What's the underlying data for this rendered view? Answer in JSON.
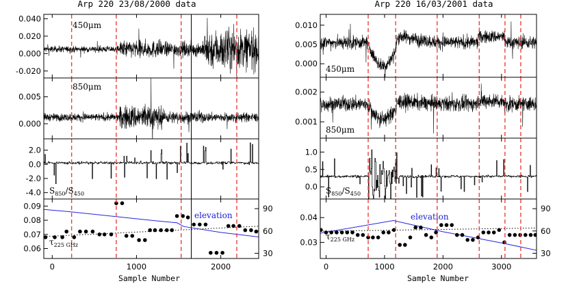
{
  "colors": {
    "dashed_lines": "#e8413f",
    "elevation": "#2323e0",
    "trace": "#000000"
  },
  "chart_data": [
    {
      "type": "line",
      "title": "Arp 220 23/08/2000 data",
      "xlabel": "Sample Number",
      "xlim": [
        -100,
        2450
      ],
      "x_ticks": [
        0,
        1000,
        2000
      ],
      "dashed_markers_x": [
        230,
        760,
        1530,
        2190
      ],
      "solid_marker_x": 1650,
      "panels": [
        {
          "name": "450",
          "label_main": "450",
          "label_unit": "μm",
          "ylim": [
            -0.028,
            0.045
          ],
          "y_ticks": [
            0.04,
            0.02,
            0.0,
            -0.02
          ],
          "y_tick_labels": [
            "0.040",
            "0.020",
            "0.000",
            "-0.020"
          ],
          "baseline": 0.005,
          "noise_segments": [
            [
              -100,
              800,
              0.0025
            ],
            [
              800,
              1300,
              0.007
            ],
            [
              1300,
              1800,
              0.006
            ],
            [
              1800,
              2450,
              0.016
            ]
          ]
        },
        {
          "name": "850",
          "label_main": "850",
          "label_unit": "μm",
          "ylim": [
            -0.0028,
            0.0085
          ],
          "y_ticks": [
            0.005,
            0.0
          ],
          "y_tick_labels": [
            "0.005",
            "0.000"
          ],
          "baseline": 0.0012,
          "noise_segments": [
            [
              -100,
              800,
              0.0005
            ],
            [
              800,
              1300,
              0.0016
            ],
            [
              1300,
              1800,
              0.0008
            ],
            [
              1800,
              2450,
              0.0006
            ]
          ]
        },
        {
          "name": "ratio",
          "label_main": "S",
          "sub1": "850",
          "label_mid": "/S",
          "sub2": "450",
          "ylim": [
            -4.9,
            3.6
          ],
          "y_ticks": [
            2.0,
            0.0,
            -2.0,
            -4.0
          ],
          "y_tick_labels": [
            "2.0",
            "0.0",
            "-2.0",
            "-4.0"
          ],
          "baseline": 0.2
        },
        {
          "name": "tau",
          "label_main": "τ",
          "sub1": "225 GHz",
          "ylim": [
            0.053,
            0.095
          ],
          "y_ticks": [
            0.09,
            0.08,
            0.07,
            0.06
          ],
          "y_tick_labels": [
            "0.09",
            "0.08",
            "0.07",
            "0.06"
          ],
          "right_ylim": [
            23,
            103
          ],
          "right_ticks": [
            90,
            60,
            30
          ],
          "right_tick_labels": [
            "90",
            "60",
            "30"
          ],
          "elevation_label": "elevation",
          "elevation": [
            [
              -100,
              89
            ],
            [
              200,
              86
            ],
            [
              700,
              80
            ],
            [
              1200,
              74
            ],
            [
              1480,
              71
            ],
            [
              1560,
              66
            ],
            [
              2000,
              58
            ],
            [
              2450,
              52
            ]
          ],
          "fit_line": [
            [
              -100,
              0.0685
            ],
            [
              2450,
              0.0758
            ]
          ],
          "tau_points": [
            [
              -80,
              0.068
            ],
            [
              30,
              0.068
            ],
            [
              120,
              0.068
            ],
            [
              170,
              0.072
            ],
            [
              260,
              0.068
            ],
            [
              330,
              0.072
            ],
            [
              400,
              0.072
            ],
            [
              480,
              0.072
            ],
            [
              560,
              0.07
            ],
            [
              620,
              0.07
            ],
            [
              700,
              0.07
            ],
            [
              760,
              0.092
            ],
            [
              830,
              0.092
            ],
            [
              880,
              0.069
            ],
            [
              950,
              0.069
            ],
            [
              1030,
              0.066
            ],
            [
              1100,
              0.066
            ],
            [
              1160,
              0.073
            ],
            [
              1220,
              0.073
            ],
            [
              1290,
              0.073
            ],
            [
              1360,
              0.073
            ],
            [
              1420,
              0.073
            ],
            [
              1480,
              0.083
            ],
            [
              1550,
              0.083
            ],
            [
              1610,
              0.082
            ],
            [
              1680,
              0.077
            ],
            [
              1750,
              0.077
            ],
            [
              1820,
              0.077
            ],
            [
              1880,
              0.057
            ],
            [
              1950,
              0.057
            ],
            [
              2020,
              0.057
            ],
            [
              2090,
              0.076
            ],
            [
              2150,
              0.076
            ],
            [
              2220,
              0.076
            ],
            [
              2290,
              0.073
            ],
            [
              2360,
              0.073
            ],
            [
              2420,
              0.072
            ]
          ]
        }
      ]
    },
    {
      "type": "line",
      "title": "Arp 220 16/03/2001 data",
      "xlabel": "Sample Number",
      "xlim": [
        -100,
        3600
      ],
      "x_ticks": [
        0,
        1000,
        2000,
        3000
      ],
      "dashed_markers_x": [
        720,
        1190,
        1900,
        2620,
        3060,
        3330
      ],
      "panels": [
        {
          "name": "450",
          "label_main": "450",
          "label_unit": "μm",
          "ylim": [
            -0.0035,
            0.0128
          ],
          "y_ticks": [
            0.01,
            0.005,
            0.0
          ],
          "y_tick_labels": [
            "0.010",
            "0.005",
            "0.000"
          ],
          "baseline": 0.0055,
          "noise_segments": [
            [
              -100,
              3600,
              0.0012
            ]
          ]
        },
        {
          "name": "850",
          "label_main": "850",
          "label_unit": "μm",
          "ylim": [
            0.00045,
            0.0025
          ],
          "y_ticks": [
            0.002,
            0.001
          ],
          "y_tick_labels": [
            "0.002",
            "0.001"
          ],
          "baseline": 0.0016,
          "noise_segments": [
            [
              -100,
              3600,
              0.00018
            ]
          ]
        },
        {
          "name": "ratio",
          "label_main": "S",
          "sub1": "850",
          "label_mid": "/S",
          "sub2": "450",
          "ylim": [
            -0.35,
            1.4
          ],
          "y_ticks": [
            1.0,
            0.5,
            0.0
          ],
          "y_tick_labels": [
            "1.0",
            "0.5",
            "0.0"
          ],
          "baseline": 0.3
        },
        {
          "name": "tau",
          "label_main": "τ",
          "sub1": "225 GHz",
          "ylim": [
            0.0235,
            0.0475
          ],
          "y_ticks": [
            0.04,
            0.03
          ],
          "y_tick_labels": [
            "0.04",
            "0.03"
          ],
          "right_ylim": [
            23,
            103
          ],
          "right_ticks": [
            90,
            60,
            30
          ],
          "right_tick_labels": [
            "90",
            "60",
            "30"
          ],
          "elevation_label": "elevation",
          "elevation": [
            [
              -100,
              57
            ],
            [
              1150,
              74
            ],
            [
              2000,
              59
            ],
            [
              3000,
              44
            ],
            [
              3600,
              34
            ]
          ],
          "fit_line": [
            [
              -100,
              0.0345
            ],
            [
              3600,
              0.0358
            ]
          ],
          "tau_points": [
            [
              -90,
              0.035
            ],
            [
              0,
              0.034
            ],
            [
              90,
              0.034
            ],
            [
              180,
              0.034
            ],
            [
              270,
              0.034
            ],
            [
              360,
              0.034
            ],
            [
              450,
              0.034
            ],
            [
              540,
              0.033
            ],
            [
              630,
              0.033
            ],
            [
              720,
              0.032
            ],
            [
              800,
              0.032
            ],
            [
              890,
              0.032
            ],
            [
              980,
              0.034
            ],
            [
              1070,
              0.034
            ],
            [
              1160,
              0.035
            ],
            [
              1260,
              0.029
            ],
            [
              1350,
              0.029
            ],
            [
              1440,
              0.032
            ],
            [
              1530,
              0.036
            ],
            [
              1620,
              0.036
            ],
            [
              1710,
              0.033
            ],
            [
              1800,
              0.032
            ],
            [
              1880,
              0.034
            ],
            [
              1970,
              0.037
            ],
            [
              2060,
              0.037
            ],
            [
              2150,
              0.037
            ],
            [
              2240,
              0.033
            ],
            [
              2330,
              0.033
            ],
            [
              2420,
              0.031
            ],
            [
              2510,
              0.031
            ],
            [
              2600,
              0.032
            ],
            [
              2690,
              0.034
            ],
            [
              2780,
              0.034
            ],
            [
              2870,
              0.034
            ],
            [
              2960,
              0.035
            ],
            [
              3050,
              0.03
            ],
            [
              3140,
              0.033
            ],
            [
              3230,
              0.033
            ],
            [
              3320,
              0.033
            ],
            [
              3410,
              0.033
            ],
            [
              3500,
              0.033
            ],
            [
              3580,
              0.033
            ]
          ]
        }
      ]
    }
  ]
}
